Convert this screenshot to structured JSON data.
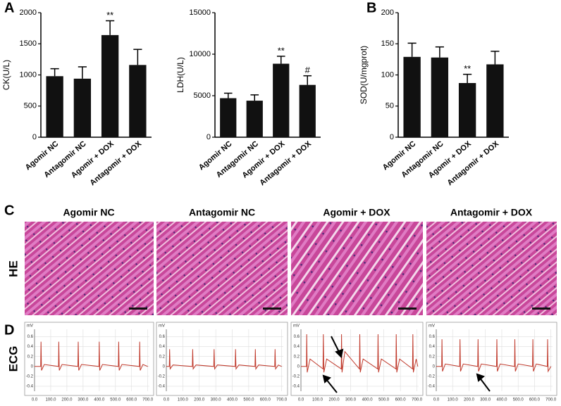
{
  "panels": [
    "A",
    "B",
    "C",
    "D"
  ],
  "histology": {
    "titles": [
      "Agomir NC",
      "Antagomir NC",
      "Agomir + DOX",
      "Antagomir + DOX"
    ],
    "label": "HE"
  },
  "ecg_label": "ECG",
  "chart_data": [
    {
      "type": "bar",
      "ylabel": "CK(U/L)",
      "categories": [
        "Agomir NC",
        "Antagomir NC",
        "Agomir + DOX",
        "Antagomir + DOX"
      ],
      "values": [
        980,
        940,
        1640,
        1160
      ],
      "errors": [
        120,
        190,
        230,
        250
      ],
      "annotations": [
        null,
        null,
        "**",
        null
      ],
      "color": "#111111",
      "ylim": [
        0,
        2000
      ],
      "yticks": [
        0,
        500,
        1000,
        1500,
        2000
      ]
    },
    {
      "type": "bar",
      "ylabel": "LDH(U/L)",
      "categories": [
        "Agomir NC",
        "Antagomir NC",
        "Agomir + DOX",
        "Antagomir + DOX"
      ],
      "values": [
        4700,
        4400,
        8850,
        6300
      ],
      "errors": [
        600,
        700,
        900,
        1100
      ],
      "annotations": [
        null,
        null,
        "**",
        "#"
      ],
      "color": "#111111",
      "ylim": [
        0,
        15000
      ],
      "yticks": [
        0,
        5000,
        10000,
        15000
      ]
    },
    {
      "type": "bar",
      "ylabel": "SOD(U/mgprot)",
      "categories": [
        "Agomir NC",
        "Antagomir NC",
        "Agomir + DOX",
        "Antagomir + DOX"
      ],
      "values": [
        129,
        128,
        87,
        117
      ],
      "errors": [
        22,
        17,
        14,
        21
      ],
      "annotations": [
        null,
        null,
        "**",
        null
      ],
      "color": "#111111",
      "ylim": [
        0,
        200
      ],
      "yticks": [
        0,
        50,
        100,
        150,
        200
      ]
    },
    {
      "type": "line",
      "ylabel": "mV",
      "color": "#c0392b",
      "grid": true,
      "x": [
        0,
        38,
        40,
        43,
        60,
        148,
        150,
        153,
        170,
        268,
        270,
        273,
        290,
        398,
        400,
        403,
        420,
        518,
        520,
        523,
        540,
        648,
        650,
        653,
        670,
        700
      ],
      "values": [
        0,
        0,
        0.5,
        -0.08,
        0.04,
        0,
        0.5,
        -0.08,
        0.04,
        0,
        0.5,
        -0.08,
        0.04,
        0,
        0.5,
        -0.08,
        0.04,
        0,
        0.5,
        -0.08,
        0.04,
        0,
        0.5,
        -0.08,
        0.04,
        0
      ],
      "xlim": [
        0,
        710
      ],
      "ylim": [
        -0.5,
        0.75
      ],
      "yticks": [
        -0.4,
        -0.2,
        0,
        0.2,
        0.4,
        0.6
      ],
      "xticks": [
        {
          "value": 0,
          "label": "0.0"
        },
        {
          "value": 100,
          "label": "100.0"
        },
        {
          "value": 200,
          "label": "200.0"
        },
        {
          "value": 300,
          "label": "300.0"
        },
        {
          "value": 400,
          "label": "400.0"
        },
        {
          "value": 500,
          "label": "500.0"
        },
        {
          "value": 600,
          "label": "600.0"
        },
        {
          "value": 700,
          "label": "700.0"
        }
      ]
    },
    {
      "type": "line",
      "ylabel": "mV",
      "color": "#c0392b",
      "grid": true,
      "x": [
        0,
        18,
        20,
        23,
        40,
        158,
        160,
        163,
        180,
        288,
        290,
        293,
        310,
        418,
        420,
        423,
        440,
        538,
        540,
        543,
        560,
        658,
        660,
        663,
        680,
        700
      ],
      "values": [
        0,
        0,
        0.35,
        -0.05,
        0.03,
        0,
        0.35,
        -0.05,
        0.03,
        0,
        0.35,
        -0.05,
        0.03,
        0,
        0.35,
        -0.05,
        0.03,
        0,
        0.35,
        -0.05,
        0.03,
        0,
        0.35,
        -0.05,
        0.03,
        0
      ],
      "xlim": [
        0,
        710
      ],
      "ylim": [
        -0.5,
        0.75
      ],
      "yticks": [
        -0.4,
        -0.2,
        0,
        0.2,
        0.4,
        0.6
      ],
      "xticks": [
        {
          "value": 0,
          "label": "0.0"
        },
        {
          "value": 100,
          "label": "100.0"
        },
        {
          "value": 200,
          "label": "200.0"
        },
        {
          "value": 300,
          "label": "300.0"
        },
        {
          "value": 400,
          "label": "400.0"
        },
        {
          "value": 500,
          "label": "500.0"
        },
        {
          "value": 600,
          "label": "600.0"
        },
        {
          "value": 700,
          "label": "700.0"
        }
      ]
    },
    {
      "type": "line",
      "ylabel": "mV",
      "color": "#c0392b",
      "grid": true,
      "x": [
        0,
        33,
        35,
        38,
        55,
        133,
        135,
        138,
        155,
        243,
        245,
        248,
        265,
        353,
        355,
        358,
        375,
        463,
        465,
        468,
        485,
        573,
        575,
        578,
        595,
        673,
        675,
        678,
        695,
        705
      ],
      "values": [
        0,
        0,
        0.65,
        -0.12,
        0.15,
        -0.05,
        0.65,
        -0.12,
        0.15,
        -0.05,
        0.65,
        -0.12,
        0.3,
        -0.05,
        0.65,
        -0.12,
        0.15,
        -0.05,
        0.65,
        -0.12,
        0.15,
        -0.05,
        0.65,
        -0.12,
        0.15,
        -0.05,
        0.65,
        -0.12,
        0.15,
        0
      ],
      "xlim": [
        0,
        710
      ],
      "ylim": [
        -0.5,
        0.75
      ],
      "yticks": [
        -0.4,
        -0.2,
        0,
        0.2,
        0.4,
        0.6
      ],
      "xticks": [
        {
          "value": 0,
          "label": "0.0"
        },
        {
          "value": 100,
          "label": "100.0"
        },
        {
          "value": 200,
          "label": "200.0"
        },
        {
          "value": 300,
          "label": "300.0"
        },
        {
          "value": 400,
          "label": "400.0"
        },
        {
          "value": 500,
          "label": "500.0"
        },
        {
          "value": 600,
          "label": "600.0"
        },
        {
          "value": 700,
          "label": "700.0"
        }
      ]
    },
    {
      "type": "line",
      "ylabel": "mV",
      "color": "#c0392b",
      "grid": true,
      "x": [
        0,
        33,
        35,
        38,
        55,
        143,
        145,
        148,
        165,
        253,
        255,
        258,
        275,
        368,
        370,
        373,
        390,
        478,
        480,
        483,
        500,
        588,
        590,
        593,
        610,
        678,
        680,
        683,
        700
      ],
      "values": [
        0,
        0,
        0.55,
        -0.1,
        0.05,
        0,
        0.55,
        -0.1,
        0.05,
        0,
        0.55,
        -0.1,
        0.05,
        0,
        0.55,
        -0.1,
        0.05,
        0,
        0.55,
        -0.1,
        0.05,
        0,
        0.55,
        -0.1,
        0.05,
        0,
        0.55,
        -0.1,
        0
      ],
      "xlim": [
        0,
        710
      ],
      "ylim": [
        -0.5,
        0.75
      ],
      "yticks": [
        -0.4,
        -0.2,
        0,
        0.2,
        0.4,
        0.6
      ],
      "xticks": [
        {
          "value": 0,
          "label": "0.0"
        },
        {
          "value": 100,
          "label": "100.0"
        },
        {
          "value": 200,
          "label": "200.0"
        },
        {
          "value": 300,
          "label": "300.0"
        },
        {
          "value": 400,
          "label": "400.0"
        },
        {
          "value": 500,
          "label": "500.0"
        },
        {
          "value": 600,
          "label": "600.0"
        },
        {
          "value": 700,
          "label": "700.0"
        }
      ]
    }
  ]
}
